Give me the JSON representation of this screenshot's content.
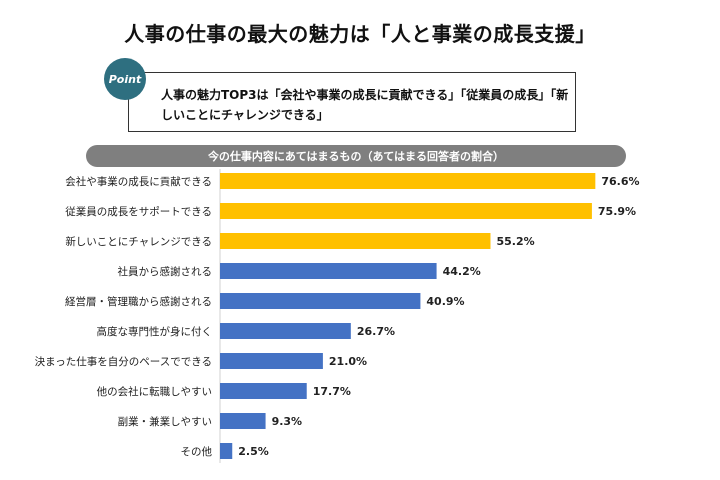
{
  "title": "人事の仕事の最大の魅力は「人と事業の成長支援」",
  "point": {
    "badge": "Point",
    "text": "人事の魅力TOP3は「会社や事業の成長に貢献できる」「従業員の成長」「新しいことにチャレンジできる」"
  },
  "section_header": "今の仕事内容にあてはまるもの（あてはまる回答者の割合）",
  "colors": {
    "highlight": "#ffc000",
    "normal": "#4472c4"
  },
  "chart_data": {
    "type": "bar",
    "orientation": "horizontal",
    "title": "今の仕事内容にあてはまるもの（あてはまる回答者の割合）",
    "categories": [
      "会社や事業の成長に貢献できる",
      "従業員の成長をサポートできる",
      "新しいことにチャレンジできる",
      "社員から感謝される",
      "経営層・管理職から感謝される",
      "高度な専門性が身に付く",
      "決まった仕事を自分のペースでできる",
      "他の会社に転職しやすい",
      "副業・兼業しやすい",
      "その他"
    ],
    "values": [
      76.6,
      75.9,
      55.2,
      44.2,
      40.9,
      26.7,
      21.0,
      17.7,
      9.3,
      2.5
    ],
    "value_labels": [
      "76.6%",
      "75.9%",
      "55.2%",
      "44.2%",
      "40.9%",
      "26.7%",
      "21.0%",
      "17.7%",
      "9.3%",
      "2.5%"
    ],
    "highlight_top": 3,
    "xlim": [
      0,
      80
    ],
    "unit": "%",
    "grid": false,
    "legend": "none"
  }
}
